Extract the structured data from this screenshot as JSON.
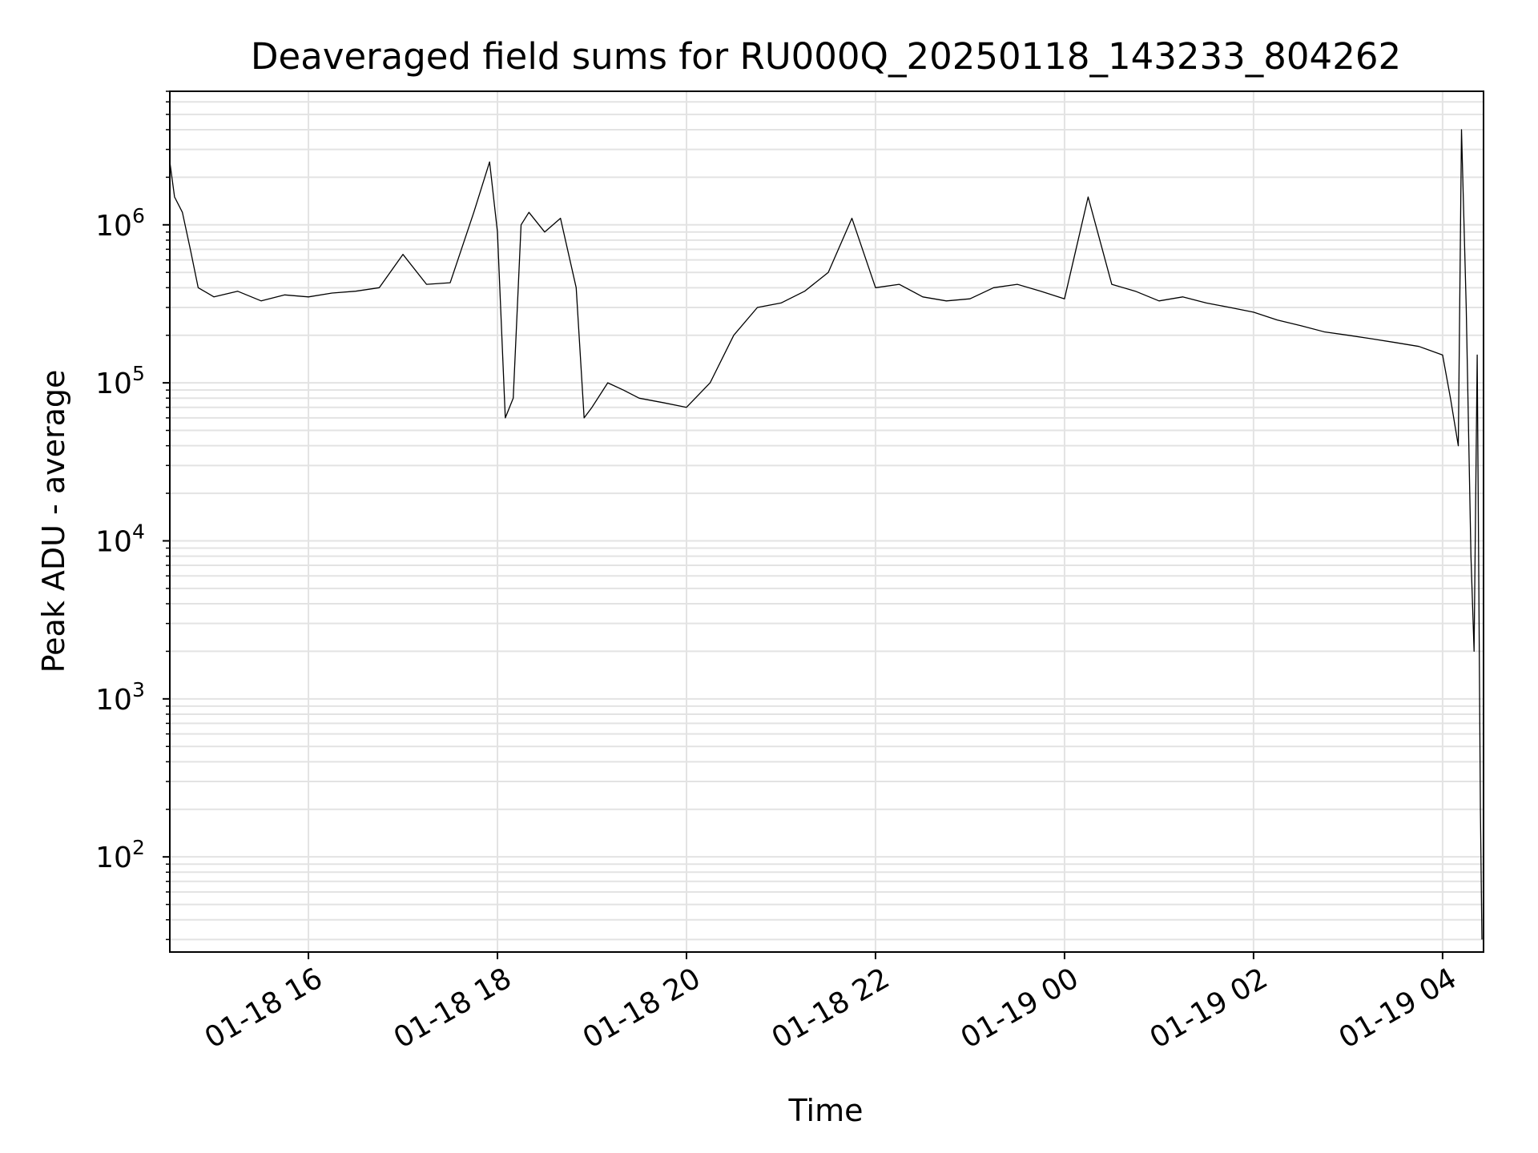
{
  "chart_data": {
    "type": "line",
    "title": "Deaveraged field sums for RU000Q_20250118_143233_804262",
    "xlabel": "Time",
    "ylabel": "Peak ADU - average",
    "y_scale": "log",
    "ylim": [
      25,
      7000000
    ],
    "xlim": [
      "2025-01-18 14:32",
      "2025-01-19 04:26"
    ],
    "grid": true,
    "line_color": "#000000",
    "grid_color": "#e3e3e3",
    "x_ticks": [
      {
        "value": "2025-01-18 16:00",
        "label": "01-18 16"
      },
      {
        "value": "2025-01-18 18:00",
        "label": "01-18 18"
      },
      {
        "value": "2025-01-18 20:00",
        "label": "01-18 20"
      },
      {
        "value": "2025-01-18 22:00",
        "label": "01-18 22"
      },
      {
        "value": "2025-01-19 00:00",
        "label": "01-19 00"
      },
      {
        "value": "2025-01-19 02:00",
        "label": "01-19 02"
      },
      {
        "value": "2025-01-19 04:00",
        "label": "01-19 04"
      }
    ],
    "y_ticks": [
      {
        "value": 100,
        "base": "10",
        "exp": "2"
      },
      {
        "value": 1000,
        "base": "10",
        "exp": "3"
      },
      {
        "value": 10000,
        "base": "10",
        "exp": "4"
      },
      {
        "value": 100000,
        "base": "10",
        "exp": "5"
      },
      {
        "value": 1000000,
        "base": "10",
        "exp": "6"
      }
    ],
    "series": [
      {
        "x": [
          "2025-01-18 14:32",
          "2025-01-18 14:35",
          "2025-01-18 14:40",
          "2025-01-18 14:45",
          "2025-01-18 14:50",
          "2025-01-18 15:00",
          "2025-01-18 15:15",
          "2025-01-18 15:30",
          "2025-01-18 15:45",
          "2025-01-18 16:00",
          "2025-01-18 16:15",
          "2025-01-18 16:30",
          "2025-01-18 16:45",
          "2025-01-18 17:00",
          "2025-01-18 17:15",
          "2025-01-18 17:30",
          "2025-01-18 17:45",
          "2025-01-18 17:55",
          "2025-01-18 18:00",
          "2025-01-18 18:05",
          "2025-01-18 18:10",
          "2025-01-18 18:15",
          "2025-01-18 18:20",
          "2025-01-18 18:30",
          "2025-01-18 18:40",
          "2025-01-18 18:50",
          "2025-01-18 18:55",
          "2025-01-18 19:00",
          "2025-01-18 19:10",
          "2025-01-18 19:20",
          "2025-01-18 19:30",
          "2025-01-18 19:45",
          "2025-01-18 20:00",
          "2025-01-18 20:15",
          "2025-01-18 20:30",
          "2025-01-18 20:45",
          "2025-01-18 21:00",
          "2025-01-18 21:15",
          "2025-01-18 21:30",
          "2025-01-18 21:45",
          "2025-01-18 22:00",
          "2025-01-18 22:15",
          "2025-01-18 22:30",
          "2025-01-18 22:45",
          "2025-01-18 23:00",
          "2025-01-18 23:15",
          "2025-01-18 23:30",
          "2025-01-18 23:45",
          "2025-01-19 00:00",
          "2025-01-19 00:15",
          "2025-01-19 00:30",
          "2025-01-19 00:45",
          "2025-01-19 01:00",
          "2025-01-19 01:15",
          "2025-01-19 01:30",
          "2025-01-19 01:45",
          "2025-01-19 02:00",
          "2025-01-19 02:15",
          "2025-01-19 02:30",
          "2025-01-19 02:45",
          "2025-01-19 03:00",
          "2025-01-19 03:15",
          "2025-01-19 03:30",
          "2025-01-19 03:45",
          "2025-01-19 04:00",
          "2025-01-19 04:05",
          "2025-01-19 04:10",
          "2025-01-19 04:12",
          "2025-01-19 04:15",
          "2025-01-19 04:18",
          "2025-01-19 04:20",
          "2025-01-19 04:22",
          "2025-01-19 04:24",
          "2025-01-19 04:25"
        ],
        "y": [
          2500000,
          1500000,
          1200000,
          700000,
          400000,
          350000,
          380000,
          330000,
          360000,
          350000,
          370000,
          380000,
          400000,
          650000,
          420000,
          430000,
          1200000,
          2500000,
          900000,
          60000,
          80000,
          1000000,
          1200000,
          900000,
          1100000,
          400000,
          60000,
          70000,
          100000,
          90000,
          80000,
          75000,
          70000,
          100000,
          200000,
          300000,
          320000,
          380000,
          500000,
          1100000,
          400000,
          420000,
          350000,
          330000,
          340000,
          400000,
          420000,
          380000,
          340000,
          1500000,
          420000,
          380000,
          330000,
          350000,
          320000,
          300000,
          280000,
          250000,
          230000,
          210000,
          200000,
          190000,
          180000,
          170000,
          150000,
          80000,
          40000,
          4000000,
          300000,
          8000,
          2000,
          150000,
          200,
          30
        ]
      }
    ]
  }
}
